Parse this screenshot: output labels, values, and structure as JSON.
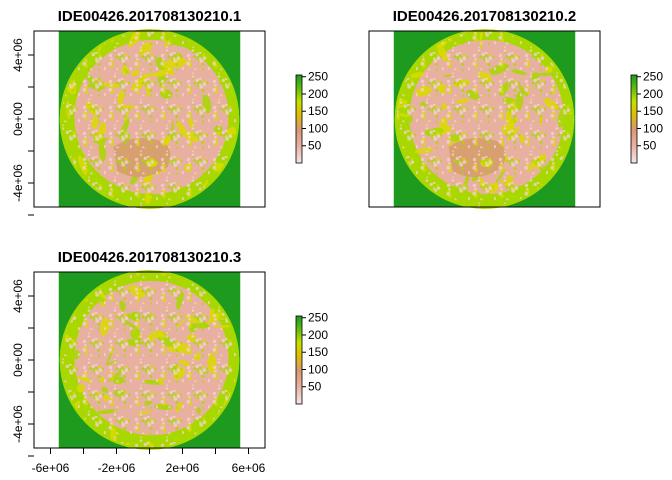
{
  "chart_data": [
    {
      "type": "heatmap",
      "title": "IDE00426.201708130210.1",
      "xlim": [
        -7000000,
        7000000
      ],
      "ylim": [
        -5500000,
        5500000
      ],
      "y_ticks": [
        "-4e+06",
        "0e+00",
        "4e+06"
      ],
      "y_tick_values": [
        -4000000,
        0,
        4000000
      ],
      "x_ticks": [],
      "x_tick_values": [],
      "legend": {
        "ticks": [
          "50",
          "100",
          "150",
          "200",
          "250"
        ],
        "values": [
          50,
          100,
          150,
          200,
          250
        ],
        "range": [
          0,
          255
        ]
      }
    },
    {
      "type": "heatmap",
      "title": "IDE00426.201708130210.2",
      "xlim": [
        -7000000,
        7000000
      ],
      "ylim": [
        -5500000,
        5500000
      ],
      "y_ticks": [],
      "y_tick_values": [],
      "x_ticks": [],
      "x_tick_values": [],
      "legend": {
        "ticks": [
          "50",
          "100",
          "150",
          "200",
          "250"
        ],
        "values": [
          50,
          100,
          150,
          200,
          250
        ],
        "range": [
          0,
          255
        ]
      }
    },
    {
      "type": "heatmap",
      "title": "IDE00426.201708130210.3",
      "xlim": [
        -7000000,
        7000000
      ],
      "ylim": [
        -5500000,
        5500000
      ],
      "y_ticks": [
        "-4e+06",
        "0e+00",
        "4e+06"
      ],
      "y_tick_values": [
        -4000000,
        0,
        4000000
      ],
      "x_ticks": [
        "-6e+06",
        "-2e+06",
        "2e+06",
        "6e+06"
      ],
      "x_tick_values": [
        -6000000,
        -2000000,
        2000000,
        6000000
      ],
      "legend": {
        "ticks": [
          "50",
          "100",
          "150",
          "200",
          "250"
        ],
        "values": [
          50,
          100,
          150,
          200,
          250
        ],
        "range": [
          0,
          255
        ]
      }
    }
  ],
  "colors": {
    "green": "#1e9b1e",
    "yellow_green": "#a8d800",
    "yellow": "#dada00",
    "tan": "#d8a070",
    "pink": "#e8b0a0",
    "light_pink": "#f2d4d0",
    "frame": "#000000"
  }
}
